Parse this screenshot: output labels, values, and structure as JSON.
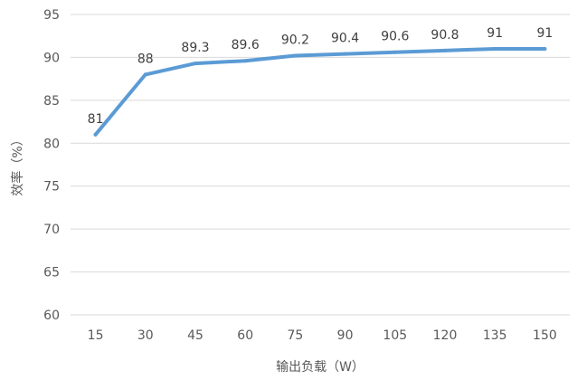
{
  "chart_data": {
    "type": "line",
    "title": "",
    "xlabel": "输出负载（W）",
    "ylabel": "效率（%）",
    "categories": [
      "15",
      "30",
      "45",
      "60",
      "75",
      "90",
      "105",
      "120",
      "135",
      "150"
    ],
    "series": [
      {
        "values": [
          81,
          88,
          89.3,
          89.6,
          90.2,
          90.4,
          90.6,
          90.8,
          91,
          91
        ]
      }
    ],
    "data_labels": [
      "81",
      "88",
      "89.3",
      "89.6",
      "90.2",
      "90.4",
      "90.6",
      "90.8",
      "91",
      "91"
    ],
    "ylim": [
      60,
      95
    ],
    "yticks": [
      "60",
      "65",
      "70",
      "75",
      "80",
      "85",
      "90",
      "95"
    ],
    "grid": true,
    "legend": "none",
    "colors": {
      "line": "#5b9bd5",
      "grid": "#d9d9d9",
      "text": "#595959"
    }
  }
}
